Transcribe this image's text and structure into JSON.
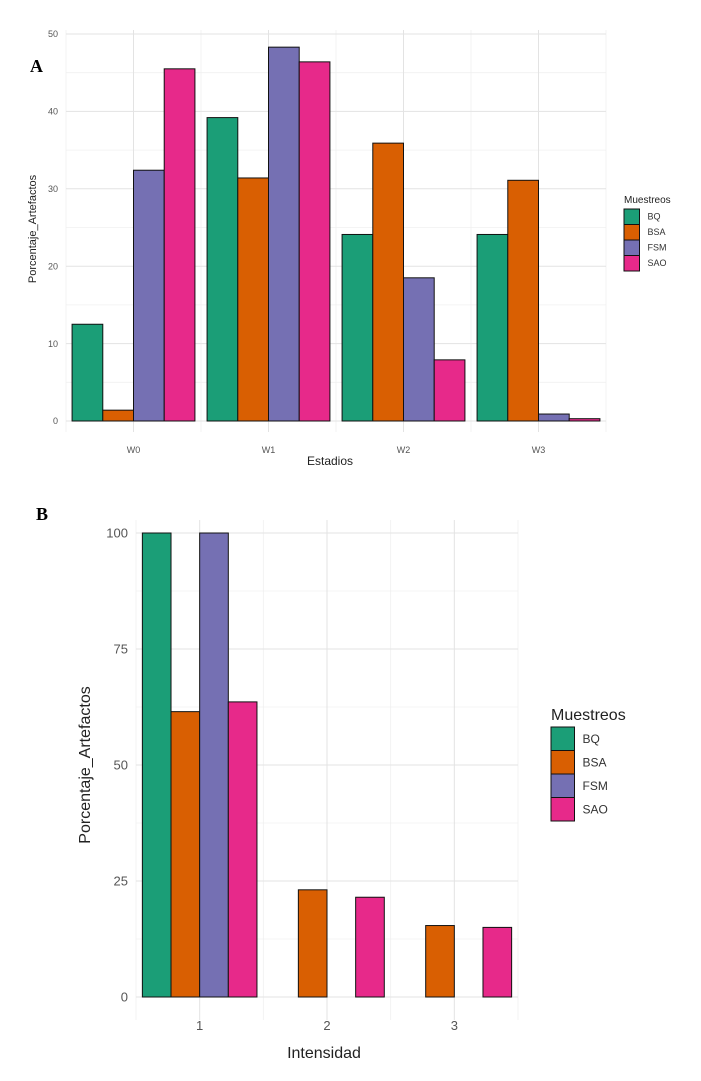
{
  "chart_data": [
    {
      "panel": "A",
      "type": "bar",
      "xlabel": "Estadios",
      "ylabel": "Porcentaje_Artefactos",
      "categories": [
        "W0",
        "W1",
        "W2",
        "W3"
      ],
      "ylim": [
        0,
        50
      ],
      "yticks": [
        0,
        10,
        20,
        30,
        40,
        50
      ],
      "grid": true,
      "legend": {
        "title": "Muestreos",
        "position": "right"
      },
      "series": [
        {
          "name": "BQ",
          "color": "#1b9e77",
          "values": [
            12.5,
            39.2,
            24.1,
            24.1
          ]
        },
        {
          "name": "BSA",
          "color": "#d95f02",
          "values": [
            1.4,
            31.4,
            35.9,
            31.1
          ]
        },
        {
          "name": "FSM",
          "color": "#7570b3",
          "values": [
            32.4,
            48.3,
            18.5,
            0.9
          ]
        },
        {
          "name": "SAO",
          "color": "#e7298a",
          "values": [
            45.5,
            46.4,
            7.9,
            0.3
          ]
        }
      ]
    },
    {
      "panel": "B",
      "type": "bar",
      "xlabel": "Intensidad",
      "ylabel": "Porcentaje_Artefactos",
      "categories": [
        "1",
        "2",
        "3"
      ],
      "ylim": [
        0,
        100
      ],
      "yticks": [
        0,
        25,
        50,
        75,
        100
      ],
      "grid": true,
      "legend": {
        "title": "Muestreos",
        "position": "right"
      },
      "series": [
        {
          "name": "BQ",
          "color": "#1b9e77",
          "values": [
            100,
            0,
            0
          ]
        },
        {
          "name": "BSA",
          "color": "#d95f02",
          "values": [
            61.5,
            23.1,
            15.4
          ]
        },
        {
          "name": "FSM",
          "color": "#7570b3",
          "values": [
            100,
            0,
            0
          ]
        },
        {
          "name": "SAO",
          "color": "#e7298a",
          "values": [
            63.6,
            21.5,
            15.0
          ]
        }
      ]
    }
  ]
}
